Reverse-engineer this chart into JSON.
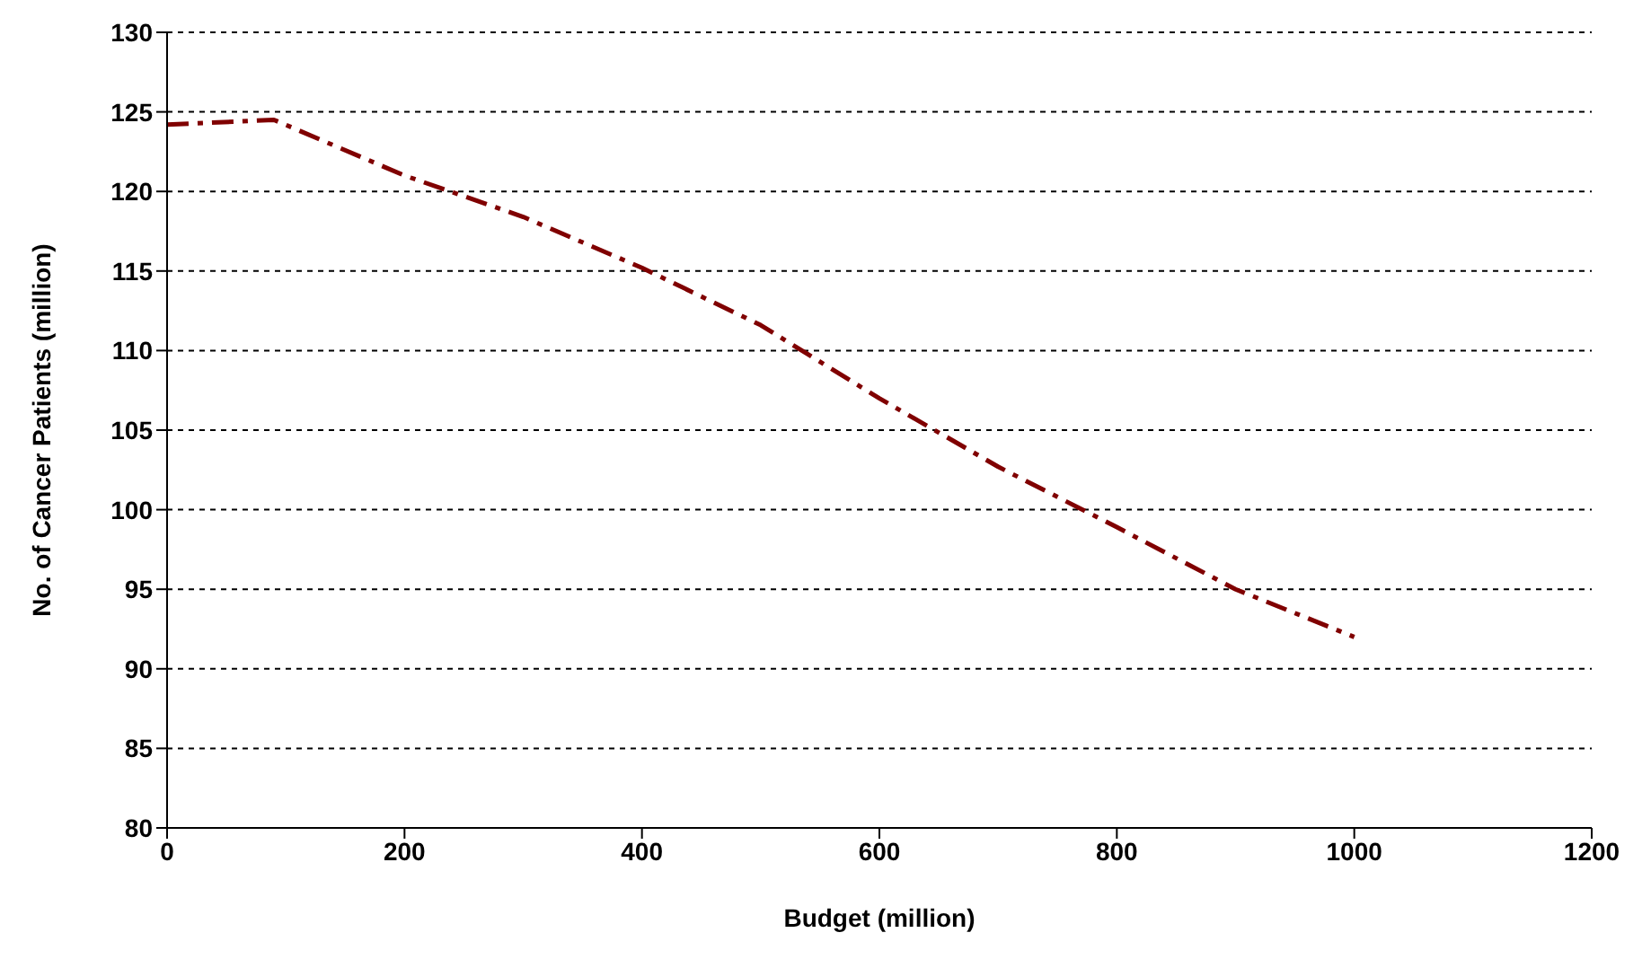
{
  "chart_data": {
    "type": "line",
    "xlabel": "Budget (million)",
    "ylabel": "No. of Cancer Patients (million)",
    "x": [
      0,
      90,
      200,
      300,
      400,
      500,
      600,
      700,
      800,
      900,
      1000
    ],
    "series": [
      {
        "color": "#800000",
        "values": [
          124.2,
          124.5,
          121.0,
          118.4,
          115.2,
          111.6,
          107.0,
          102.7,
          98.9,
          95.0,
          92.0
        ]
      }
    ],
    "xlim": [
      0,
      1200
    ],
    "xticks": [
      0,
      200,
      400,
      600,
      800,
      1000,
      1200
    ],
    "ylim": [
      80,
      130
    ],
    "yticks": [
      80,
      85,
      90,
      95,
      100,
      105,
      110,
      115,
      120,
      125,
      130
    ],
    "grid": "y",
    "legend": false,
    "marker": "none",
    "line_style": "dashed"
  }
}
